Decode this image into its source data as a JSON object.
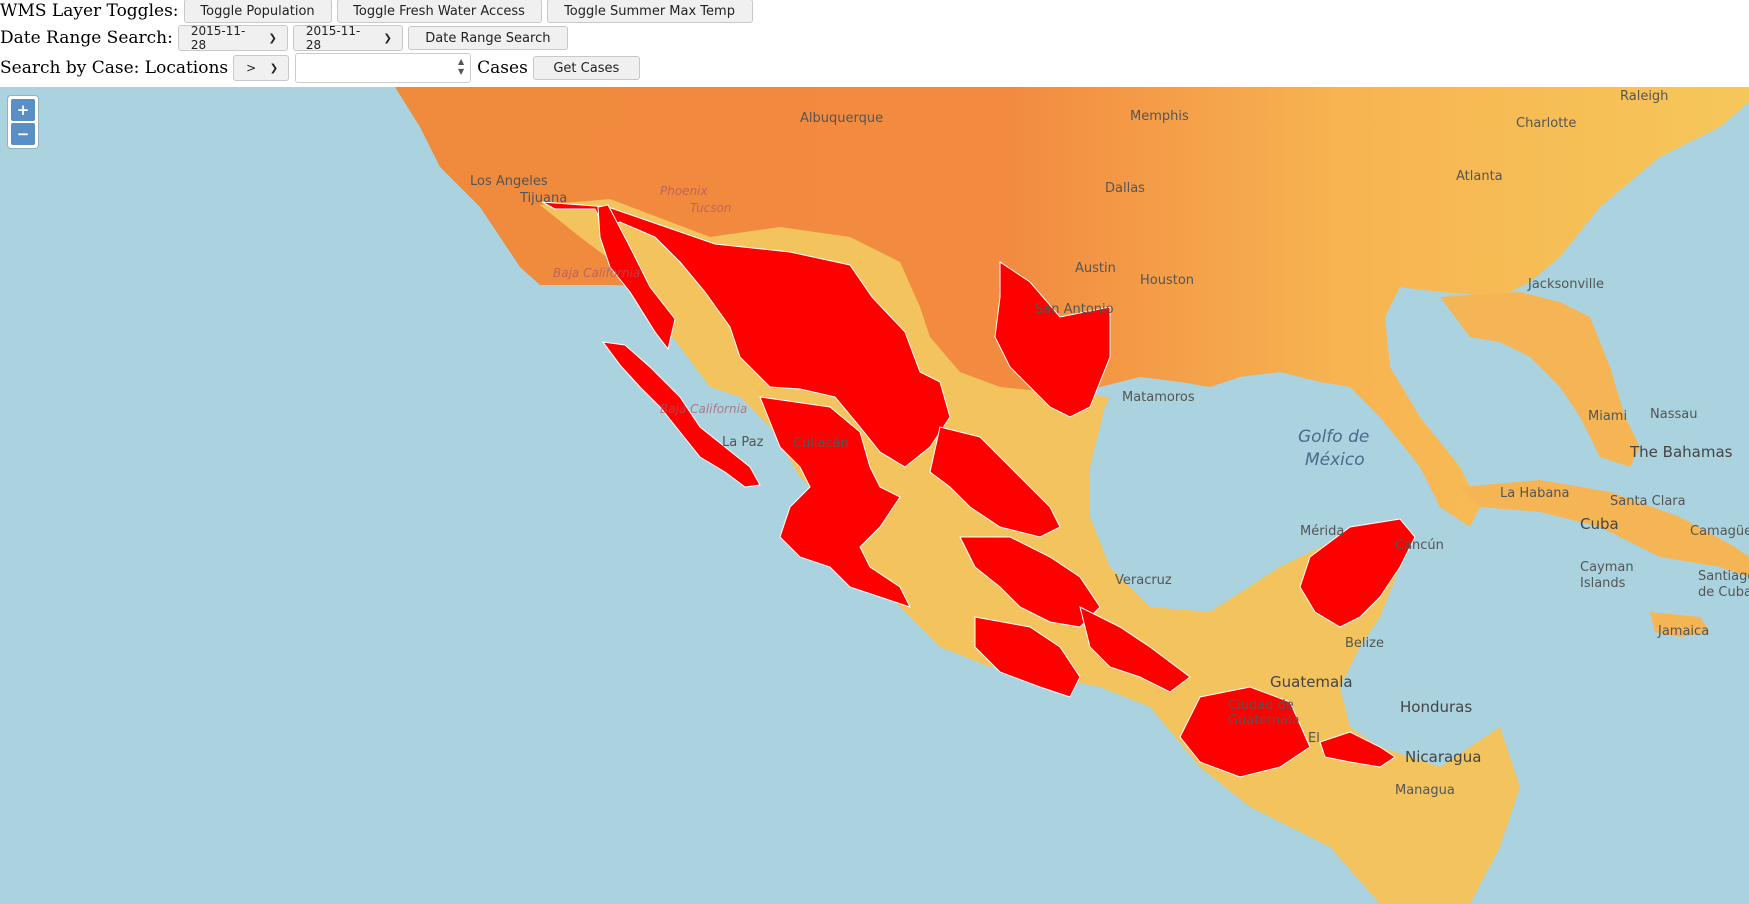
{
  "controls": {
    "wms_label": "WMS Layer Toggles:",
    "toggle_population": "Toggle Population",
    "toggle_fresh_water": "Toggle Fresh Water Access",
    "toggle_summer_temp": "Toggle Summer Max Temp",
    "date_label": "Date Range Search:",
    "date_start": "2015-11-28",
    "date_end": "2015-11-28",
    "date_search_button": "Date Range Search",
    "case_label": "Search by Case: Locations",
    "operator": ">",
    "case_value": "",
    "cases_label": "Cases",
    "get_cases_button": "Get Cases"
  },
  "map": {
    "zoom_in": "+",
    "zoom_out": "−",
    "colors": {
      "ocean": "#aad3df",
      "heat": "#f5a14a",
      "highlight": "#ff0000",
      "land_pale": "#f3c45e"
    },
    "labels": {
      "la": "Los Angeles",
      "tijuana": "Tijuana",
      "albuquerque": "Albuquerque",
      "memphis": "Memphis",
      "raleigh": "Raleigh",
      "charlotte": "Charlotte",
      "atlanta": "Atlanta",
      "dallas": "Dallas",
      "austin": "Austin",
      "houston": "Houston",
      "sanantonio": "San Antonio",
      "jacksonville": "Jacksonville",
      "miami": "Miami",
      "nassau": "Nassau",
      "bahamas": "The Bahamas",
      "havana": "La Habana",
      "santaclara": "Santa Clara",
      "camaguey": "Camagüey",
      "cuba": "Cuba",
      "cayman1": "Cayman",
      "cayman2": "Islands",
      "santiago1": "Santiago",
      "santiago2": "de Cuba",
      "jamaica": "Jamaica",
      "gulf1": "Golfo de",
      "gulf2": "México",
      "veracruz": "Veracruz",
      "merida": "Mérida",
      "cancun": "Cancún",
      "belize": "Belize",
      "guatemala": "Guatemala",
      "cdguat1": "Ciudad de",
      "cdguat2": "Guatemala",
      "honduras": "Honduras",
      "nicaragua": "Nicaragua",
      "managua": "Managua",
      "bcn": "Baja California",
      "bcs": "Baja California",
      "lapaz": "La Paz",
      "culiacan": "Culiacán",
      "elsalvador": "El",
      "matamoros": "Matamoros",
      "phoenix": "Phoenix",
      "tucson": "Tucson"
    }
  }
}
